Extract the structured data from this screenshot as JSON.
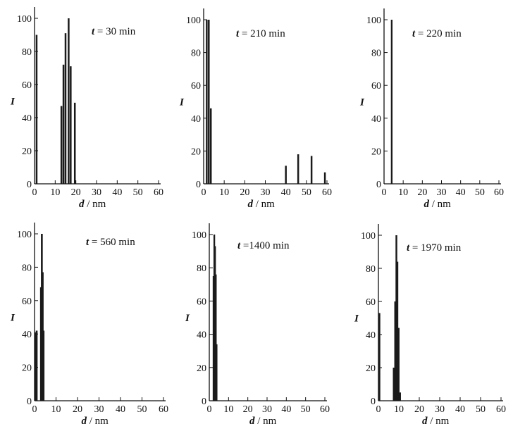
{
  "chart_data": [
    {
      "type": "bar",
      "annotation": {
        "var": "t",
        "eq": " = 30 min"
      },
      "xlabel": {
        "var": "d",
        "unit": " / nm"
      },
      "ylabel": "I",
      "xlim": [
        0,
        60
      ],
      "ylim": [
        0,
        100
      ],
      "xticks": [
        0,
        10,
        20,
        30,
        40,
        50,
        60
      ],
      "yticks": [
        0,
        20,
        40,
        60,
        80,
        100
      ],
      "bars": [
        {
          "x": 1,
          "y": 90
        },
        {
          "x": 13,
          "y": 47
        },
        {
          "x": 14,
          "y": 72
        },
        {
          "x": 15,
          "y": 91
        },
        {
          "x": 16.5,
          "y": 100
        },
        {
          "x": 17.5,
          "y": 71
        },
        {
          "x": 19.5,
          "y": 49
        }
      ]
    },
    {
      "type": "bar",
      "annotation": {
        "var": "t",
        "eq": " = 210 min"
      },
      "xlabel": {
        "var": "d",
        "unit": " / nm"
      },
      "ylabel": "I",
      "xlim": [
        0,
        60
      ],
      "ylim": [
        0,
        100
      ],
      "xticks": [
        0,
        10,
        20,
        30,
        40,
        50,
        60
      ],
      "yticks": [
        0,
        20,
        40,
        60,
        80,
        100
      ],
      "bars": [
        {
          "x": 1.5,
          "y": 100
        },
        {
          "x": 2.5,
          "y": 100
        },
        {
          "x": 3.5,
          "y": 46
        },
        {
          "x": 40,
          "y": 11
        },
        {
          "x": 46,
          "y": 18
        },
        {
          "x": 52.5,
          "y": 17
        },
        {
          "x": 59,
          "y": 7
        }
      ]
    },
    {
      "type": "bar",
      "annotation": {
        "var": "t",
        "eq": " = 220 min"
      },
      "xlabel": {
        "var": "d",
        "unit": " / nm"
      },
      "ylabel": "I",
      "xlim": [
        0,
        60
      ],
      "ylim": [
        0,
        100
      ],
      "xticks": [
        0,
        10,
        20,
        30,
        40,
        50,
        60
      ],
      "yticks": [
        0,
        20,
        40,
        60,
        80,
        100
      ],
      "bars": [
        {
          "x": 4,
          "y": 100
        }
      ]
    },
    {
      "type": "bar",
      "annotation": {
        "var": "t",
        "eq": " = 560 min"
      },
      "xlabel": {
        "var": "d",
        "unit": " / nm"
      },
      "ylabel": "I",
      "xlim": [
        0,
        60
      ],
      "ylim": [
        0,
        100
      ],
      "xticks": [
        0,
        10,
        20,
        30,
        40,
        50,
        60
      ],
      "yticks": [
        0,
        20,
        40,
        60,
        80,
        100
      ],
      "bars": [
        {
          "x": 0.5,
          "y": 41
        },
        {
          "x": 1,
          "y": 42
        },
        {
          "x": 3,
          "y": 68
        },
        {
          "x": 3.4,
          "y": 100
        },
        {
          "x": 3.8,
          "y": 77
        },
        {
          "x": 4.2,
          "y": 42
        }
      ]
    },
    {
      "type": "bar",
      "annotation": {
        "var": "t",
        "eq": " =1400 min"
      },
      "xlabel": {
        "var": "d",
        "unit": " / nm"
      },
      "ylabel": "I",
      "xlim": [
        0,
        60
      ],
      "ylim": [
        0,
        100
      ],
      "xticks": [
        0,
        10,
        20,
        30,
        40,
        50,
        60
      ],
      "yticks": [
        0,
        20,
        40,
        60,
        80,
        100
      ],
      "bars": [
        {
          "x": 2.2,
          "y": 75
        },
        {
          "x": 2.6,
          "y": 100
        },
        {
          "x": 3,
          "y": 93
        },
        {
          "x": 3.4,
          "y": 76
        },
        {
          "x": 3.8,
          "y": 34
        }
      ]
    },
    {
      "type": "bar",
      "annotation": {
        "var": "t",
        "eq": " = 1970 min"
      },
      "xlabel": {
        "var": "d",
        "unit": " / nm"
      },
      "ylabel": "I",
      "xlim": [
        0,
        60
      ],
      "ylim": [
        0,
        100
      ],
      "xticks": [
        0,
        10,
        20,
        30,
        40,
        50,
        60
      ],
      "yticks": [
        0,
        20,
        40,
        60,
        80,
        100
      ],
      "bars": [
        {
          "x": 0.5,
          "y": 53
        },
        {
          "x": 7.5,
          "y": 20
        },
        {
          "x": 8.2,
          "y": 60
        },
        {
          "x": 8.8,
          "y": 100
        },
        {
          "x": 9.3,
          "y": 84
        },
        {
          "x": 9.9,
          "y": 44
        },
        {
          "x": 10.6,
          "y": 5
        }
      ]
    }
  ]
}
